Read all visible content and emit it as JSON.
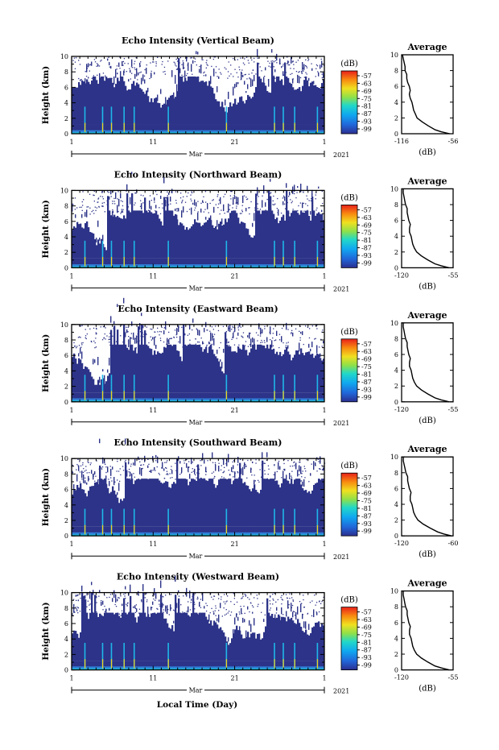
{
  "figure": {
    "x_axis_label": "Local Time (Day)",
    "month_label": "Mar",
    "year_label": "2021",
    "y_axis_label": "Height (km)",
    "colorbar_unit": "(dB)",
    "profile_title": "Average",
    "profile_xlabel": "(dB)"
  },
  "chart_data": [
    {
      "type": "heatmap",
      "title": "Echo Intensity (Vertical Beam)",
      "ylabel": "Height (km)",
      "x_ticks": [
        "1",
        "11",
        "21",
        "1"
      ],
      "y_ticks": [
        "0",
        "2",
        "4",
        "6",
        "8",
        "10"
      ],
      "ylim": [
        0,
        10
      ],
      "colorbar_label": "(dB)",
      "colorbar_ticks": [
        "-57",
        "-63",
        "-69",
        "-75",
        "-81",
        "-87",
        "-93",
        "-99"
      ],
      "colorscale": "jet",
      "profile": {
        "title": "Average",
        "xlabel": "(dB)",
        "xlim": [
          -116,
          -56
        ],
        "x_ticks": [
          "-116",
          "-56"
        ],
        "y_ticks": [
          "0",
          "2",
          "4",
          "6",
          "8",
          "10"
        ],
        "height_km": [
          0,
          0.25,
          0.5,
          1,
          1.5,
          2,
          2.5,
          3,
          3.5,
          4,
          4.5,
          5,
          5.5,
          6,
          6.5,
          7,
          7.5,
          8,
          8.5,
          9,
          9.5,
          10
        ],
        "mean_db": [
          -60,
          -70,
          -77,
          -85,
          -92,
          -98,
          -100,
          -102,
          -103,
          -104,
          -106,
          -107,
          -106,
          -107,
          -109,
          -110,
          -110,
          -112,
          -112,
          -113,
          -114,
          -115
        ]
      }
    },
    {
      "type": "heatmap",
      "title": "Echo Intensity (Northward Beam)",
      "ylabel": "Height (km)",
      "x_ticks": [
        "1",
        "11",
        "21",
        "1"
      ],
      "y_ticks": [
        "0",
        "2",
        "4",
        "6",
        "8",
        "10"
      ],
      "ylim": [
        0,
        10
      ],
      "colorbar_label": "(dB)",
      "colorbar_ticks": [
        "-57",
        "-63",
        "-69",
        "-75",
        "-81",
        "-87",
        "-93",
        "-99"
      ],
      "colorscale": "jet",
      "profile": {
        "title": "Average",
        "xlabel": "(dB)",
        "xlim": [
          -120,
          -55
        ],
        "x_ticks": [
          "-120",
          "-55"
        ],
        "y_ticks": [
          "0",
          "2",
          "4",
          "6",
          "8",
          "10"
        ],
        "height_km": [
          0,
          0.25,
          0.5,
          1,
          1.5,
          2,
          2.5,
          3,
          3.5,
          4,
          4.5,
          5,
          5.5,
          6,
          6.5,
          7,
          7.5,
          8,
          8.5,
          9,
          9.5,
          10
        ],
        "mean_db": [
          -60,
          -70,
          -78,
          -87,
          -95,
          -101,
          -104,
          -106,
          -107,
          -108,
          -110,
          -110,
          -109,
          -111,
          -112,
          -113,
          -113,
          -115,
          -116,
          -117,
          -118,
          -118
        ]
      }
    },
    {
      "type": "heatmap",
      "title": "Echo Intensity (Eastward Beam)",
      "ylabel": "Height (km)",
      "x_ticks": [
        "1",
        "11",
        "21",
        "1"
      ],
      "y_ticks": [
        "0",
        "2",
        "4",
        "6",
        "8",
        "10"
      ],
      "ylim": [
        0,
        10
      ],
      "colorbar_label": "(dB)",
      "colorbar_ticks": [
        "-57",
        "-63",
        "-69",
        "-75",
        "-81",
        "-87",
        "-93",
        "-99"
      ],
      "colorscale": "jet",
      "profile": {
        "title": "Average",
        "xlabel": "(dB)",
        "xlim": [
          -120,
          -55
        ],
        "x_ticks": [
          "-120",
          "-55"
        ],
        "y_ticks": [
          "0",
          "2",
          "4",
          "6",
          "8",
          "10"
        ],
        "height_km": [
          0,
          0.25,
          0.5,
          1,
          1.5,
          2,
          2.5,
          3,
          3.5,
          4,
          4.5,
          5,
          5.5,
          6,
          6.5,
          7,
          7.5,
          8,
          8.5,
          9,
          9.5,
          10
        ],
        "mean_db": [
          -60,
          -70,
          -78,
          -87,
          -95,
          -101,
          -104,
          -106,
          -107,
          -108,
          -110,
          -110,
          -109,
          -111,
          -112,
          -113,
          -113,
          -115,
          -116,
          -117,
          -118,
          -118
        ]
      }
    },
    {
      "type": "heatmap",
      "title": "Echo Intensity (Southward Beam)",
      "ylabel": "Height (km)",
      "x_ticks": [
        "1",
        "11",
        "21",
        "1"
      ],
      "y_ticks": [
        "0",
        "2",
        "4",
        "6",
        "8",
        "10"
      ],
      "ylim": [
        0,
        10
      ],
      "colorbar_label": "(dB)",
      "colorbar_ticks": [
        "-57",
        "-63",
        "-69",
        "-75",
        "-81",
        "-87",
        "-93",
        "-99"
      ],
      "colorscale": "jet",
      "profile": {
        "title": "Average",
        "xlabel": "(dB)",
        "xlim": [
          -120,
          -60
        ],
        "x_ticks": [
          "-120",
          "-60"
        ],
        "y_ticks": [
          "0",
          "2",
          "4",
          "6",
          "8",
          "10"
        ],
        "height_km": [
          0,
          0.25,
          0.5,
          1,
          1.5,
          2,
          2.5,
          3,
          3.5,
          4,
          4.5,
          5,
          5.5,
          6,
          6.5,
          7,
          7.5,
          8,
          8.5,
          9,
          9.5,
          10
        ],
        "mean_db": [
          -62,
          -71,
          -78,
          -87,
          -95,
          -101,
          -104,
          -106,
          -107,
          -108,
          -110,
          -110,
          -109,
          -111,
          -112,
          -113,
          -113,
          -115,
          -116,
          -117,
          -118,
          -118
        ]
      }
    },
    {
      "type": "heatmap",
      "title": "Echo Intensity (Westward Beam)",
      "ylabel": "Height (km)",
      "x_ticks": [
        "1",
        "11",
        "21",
        "1"
      ],
      "y_ticks": [
        "0",
        "2",
        "4",
        "6",
        "8",
        "10"
      ],
      "ylim": [
        0,
        10
      ],
      "colorbar_label": "(dB)",
      "colorbar_ticks": [
        "-57",
        "-63",
        "-69",
        "-75",
        "-81",
        "-87",
        "-93",
        "-99"
      ],
      "colorscale": "jet",
      "profile": {
        "title": "Average",
        "xlabel": "(dB)",
        "xlim": [
          -120,
          -55
        ],
        "x_ticks": [
          "-120",
          "-55"
        ],
        "y_ticks": [
          "0",
          "2",
          "4",
          "6",
          "8",
          "10"
        ],
        "height_km": [
          0,
          0.25,
          0.5,
          1,
          1.5,
          2,
          2.5,
          3,
          3.5,
          4,
          4.5,
          5,
          5.5,
          6,
          6.5,
          7,
          7.5,
          8,
          8.5,
          9,
          9.5,
          10
        ],
        "mean_db": [
          -60,
          -70,
          -78,
          -87,
          -95,
          -101,
          -104,
          -106,
          -107,
          -108,
          -110,
          -110,
          -109,
          -111,
          -112,
          -113,
          -113,
          -115,
          -116,
          -117,
          -118,
          -118
        ]
      }
    }
  ]
}
